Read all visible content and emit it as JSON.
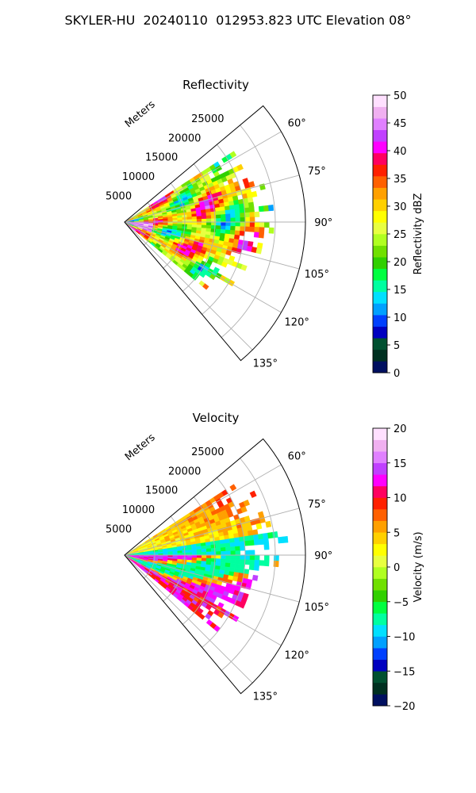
{
  "figure": {
    "title": "SKYLER-HU  20240110  012953.823 UTC Elevation 08°"
  },
  "chart_data": [
    {
      "type": "heatmap",
      "subtype": "polar-sector (radar PPI)",
      "title": "Reflectivity",
      "radial_axis_label": "Meters",
      "radial_ticks": [
        5000,
        10000,
        15000,
        20000,
        25000
      ],
      "radial_tick_labels": [
        "5000",
        "10000",
        "15000",
        "20000",
        "25000"
      ],
      "rmax": 30000,
      "azimuth_range_deg": [
        50,
        140
      ],
      "azimuth_ticks": [
        60,
        75,
        90,
        105,
        120,
        135
      ],
      "azimuth_tick_labels": [
        "60°",
        "75°",
        "90°",
        "105°",
        "120°",
        "135°"
      ],
      "data_extent_deg": [
        57,
        128
      ],
      "grid": true,
      "colorbar": {
        "label": "Reflectivity dBZ",
        "min": 0,
        "max": 50,
        "ticks": [
          0,
          5,
          10,
          15,
          20,
          25,
          30,
          35,
          40,
          45,
          50
        ],
        "tick_labels": [
          "0",
          "5",
          "10",
          "15",
          "20",
          "25",
          "30",
          "35",
          "40",
          "45",
          "50"
        ]
      },
      "value_description": "mostly 25–40 dBZ (yellow/orange/red), 40–45 dBZ magenta near radar, edges 15–22 dBZ green"
    },
    {
      "type": "heatmap",
      "subtype": "polar-sector (radar PPI)",
      "title": "Velocity",
      "radial_axis_label": "Meters",
      "radial_ticks": [
        5000,
        10000,
        15000,
        20000,
        25000
      ],
      "radial_tick_labels": [
        "5000",
        "10000",
        "15000",
        "20000",
        "25000"
      ],
      "rmax": 30000,
      "azimuth_range_deg": [
        50,
        140
      ],
      "azimuth_ticks": [
        60,
        75,
        90,
        105,
        120,
        135
      ],
      "azimuth_tick_labels": [
        "60°",
        "75°",
        "90°",
        "105°",
        "120°",
        "135°"
      ],
      "data_extent_deg": [
        57,
        128
      ],
      "grid": true,
      "colorbar": {
        "label": "Velocity (m/s)",
        "min": -20,
        "max": 20,
        "ticks": [
          -20,
          -15,
          -10,
          -5,
          0,
          5,
          10,
          15,
          20
        ],
        "tick_labels": [
          "−20",
          "−15",
          "−10",
          "−5",
          "0",
          "5",
          "10",
          "15",
          "20"
        ]
      },
      "value_description": "near 0 to +10 m/s (yellow/red) north of 90°, bands of −5 to −12 m/s (green/cyan) and +12 to +15 m/s (magenta) south of 90°"
    }
  ],
  "colors": {
    "reflectivity_scale": [
      "#001060",
      "#003020",
      "#005030",
      "#0000c0",
      "#0040ff",
      "#00a0ff",
      "#00e0ff",
      "#00ffa0",
      "#00ff40",
      "#30d000",
      "#70e000",
      "#b0ff20",
      "#e8ff40",
      "#ffff00",
      "#ffd000",
      "#ffa000",
      "#ff6000",
      "#ff2000",
      "#ff0060",
      "#ff00ff",
      "#c040ff",
      "#e080ff",
      "#f0b0f0",
      "#ffe0ff"
    ],
    "velocity_scale": [
      "#001060",
      "#003020",
      "#005030",
      "#0000c0",
      "#0040ff",
      "#00a0ff",
      "#00e0ff",
      "#00ffa0",
      "#00ff40",
      "#30d000",
      "#70e000",
      "#b0ff20",
      "#e8ff40",
      "#ffff00",
      "#ffd000",
      "#ffa000",
      "#ff6000",
      "#ff2000",
      "#ff0060",
      "#ff00ff",
      "#c040ff",
      "#e080ff",
      "#f0b0f0",
      "#ffe0ff"
    ]
  }
}
